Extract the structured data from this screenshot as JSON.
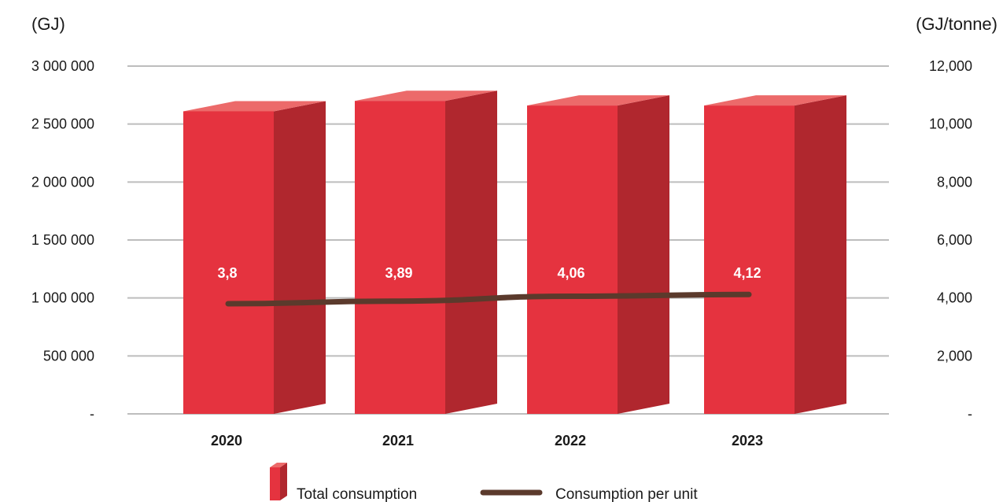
{
  "chart_data": {
    "type": "bar",
    "categories": [
      "2020",
      "2021",
      "2022",
      "2023"
    ],
    "left_axis": {
      "unit": "(GJ)",
      "ylim": [
        0,
        3000000
      ],
      "tick_values": [
        0,
        500000,
        1000000,
        1500000,
        2000000,
        2500000,
        3000000
      ],
      "tick_labels": [
        "-",
        "500 000",
        "1 000 000",
        "1 500 000",
        "2 000 000",
        "2 500 000",
        "3 000 000"
      ]
    },
    "right_axis": {
      "unit": "(GJ/tonne)",
      "ylim": [
        0,
        12000
      ],
      "tick_values": [
        0,
        2000,
        4000,
        6000,
        8000,
        10000,
        12000
      ],
      "tick_labels": [
        "-",
        "2,000",
        "4,000",
        "6,000",
        "8,000",
        "10,000",
        "12,000"
      ]
    },
    "series": [
      {
        "name": "Total consumption",
        "type": "bar",
        "axis": "left",
        "values": [
          2610000,
          2700000,
          2660000,
          2660000
        ]
      },
      {
        "name": "Consumption per unit",
        "type": "line",
        "axis": "right",
        "values": [
          3.8,
          3.89,
          4.06,
          4.12
        ],
        "data_labels": [
          "3,8",
          "3,89",
          "4,06",
          "4,12"
        ]
      }
    ],
    "grid": true,
    "legend_position": "bottom",
    "colors": {
      "bar_front": "#e5333f",
      "bar_side": "#b0272e",
      "bar_top": "#ec6a6a",
      "line": "#5b3a2c",
      "grid": "#bdbdbd"
    }
  }
}
